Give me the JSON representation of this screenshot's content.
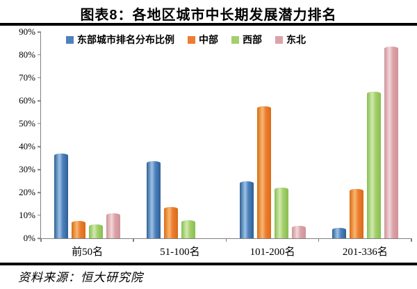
{
  "page": {
    "title": "图表8：各地区城市中长期发展潜力排名",
    "source": "资料来源：恒大研究院"
  },
  "chart_data": {
    "type": "bar",
    "title": "图表8：各地区城市中长期发展潜力排名",
    "categories": [
      "前50名",
      "51-100名",
      "101-200名",
      "201-336名"
    ],
    "series": [
      {
        "key": "east",
        "name": "东部城市排名分布比例",
        "color": "#4f81bd",
        "color_dark": "#2e6096",
        "color_light": "#9cc3e5",
        "values": [
          37,
          33.5,
          25,
          4.5
        ]
      },
      {
        "key": "central",
        "name": "中部",
        "color": "#ed7d31",
        "color_dark": "#d96b14",
        "color_light": "#f8b772",
        "values": [
          7.5,
          13.5,
          57.5,
          21.5
        ]
      },
      {
        "key": "west",
        "name": "西部",
        "color": "#a5cf6d",
        "color_dark": "#86bf4e",
        "color_light": "#d2e9b0",
        "values": [
          6,
          8,
          22,
          64
        ]
      },
      {
        "key": "northeast",
        "name": "东北",
        "color": "#dba3a8",
        "color_dark": "#cf9398",
        "color_light": "#f1d8da",
        "values": [
          11,
          0,
          5.5,
          83.5
        ]
      }
    ],
    "ylim": [
      0,
      90
    ],
    "yticks": [
      "0%",
      "10%",
      "20%",
      "30%",
      "40%",
      "50%",
      "60%",
      "70%",
      "80%",
      "90%"
    ],
    "xlabel": "",
    "ylabel": "",
    "grid": false,
    "legend_position": "top-inside",
    "source": "资料来源：恒大研究院"
  }
}
